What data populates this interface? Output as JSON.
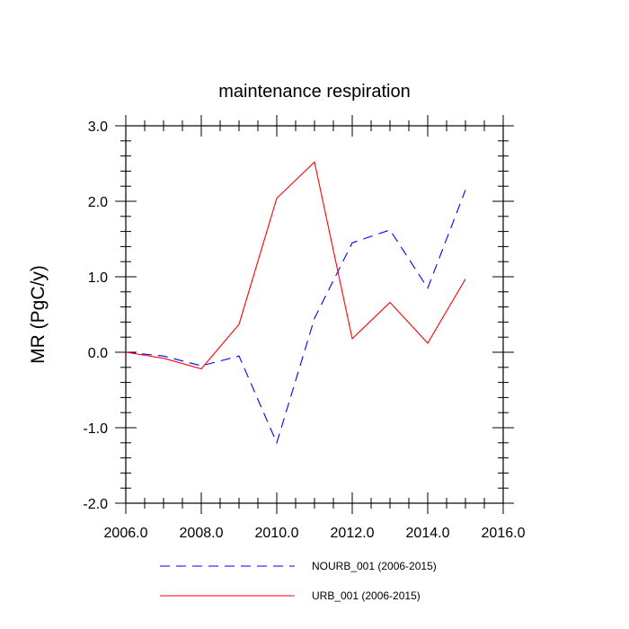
{
  "chart_data": {
    "type": "line",
    "title": "maintenance respiration",
    "xlabel": "",
    "ylabel": "MR  (PgC/y)",
    "xlim": [
      2006,
      2016
    ],
    "ylim": [
      -2,
      3
    ],
    "grid": false,
    "legend_position": "bottom",
    "x_ticks": [
      2006,
      2008,
      2010,
      2012,
      2014,
      2016
    ],
    "x_tick_labels": [
      "2006.0",
      "2008.0",
      "2010.0",
      "2012.0",
      "2014.0",
      "2016.0"
    ],
    "y_ticks": [
      -2,
      -1,
      0,
      1,
      2,
      3
    ],
    "y_tick_labels": [
      "-2.0",
      "-1.0",
      "0.0",
      "1.0",
      "2.0",
      "3.0"
    ],
    "x": [
      2006,
      2007,
      2008,
      2009,
      2010,
      2011,
      2012,
      2013,
      2014,
      2015
    ],
    "series": [
      {
        "name": "NOURB_001 (2006-2015)",
        "color": "#0000ff",
        "dash": "dashed",
        "values": [
          0.0,
          -0.05,
          -0.18,
          -0.05,
          -1.2,
          0.45,
          1.45,
          1.62,
          0.85,
          2.15
        ]
      },
      {
        "name": "URB_001 (2006-2015)",
        "color": "#ff0000",
        "dash": "solid",
        "values": [
          0.0,
          -0.08,
          -0.22,
          0.37,
          2.04,
          2.52,
          0.18,
          0.66,
          0.12,
          0.97
        ]
      }
    ]
  }
}
